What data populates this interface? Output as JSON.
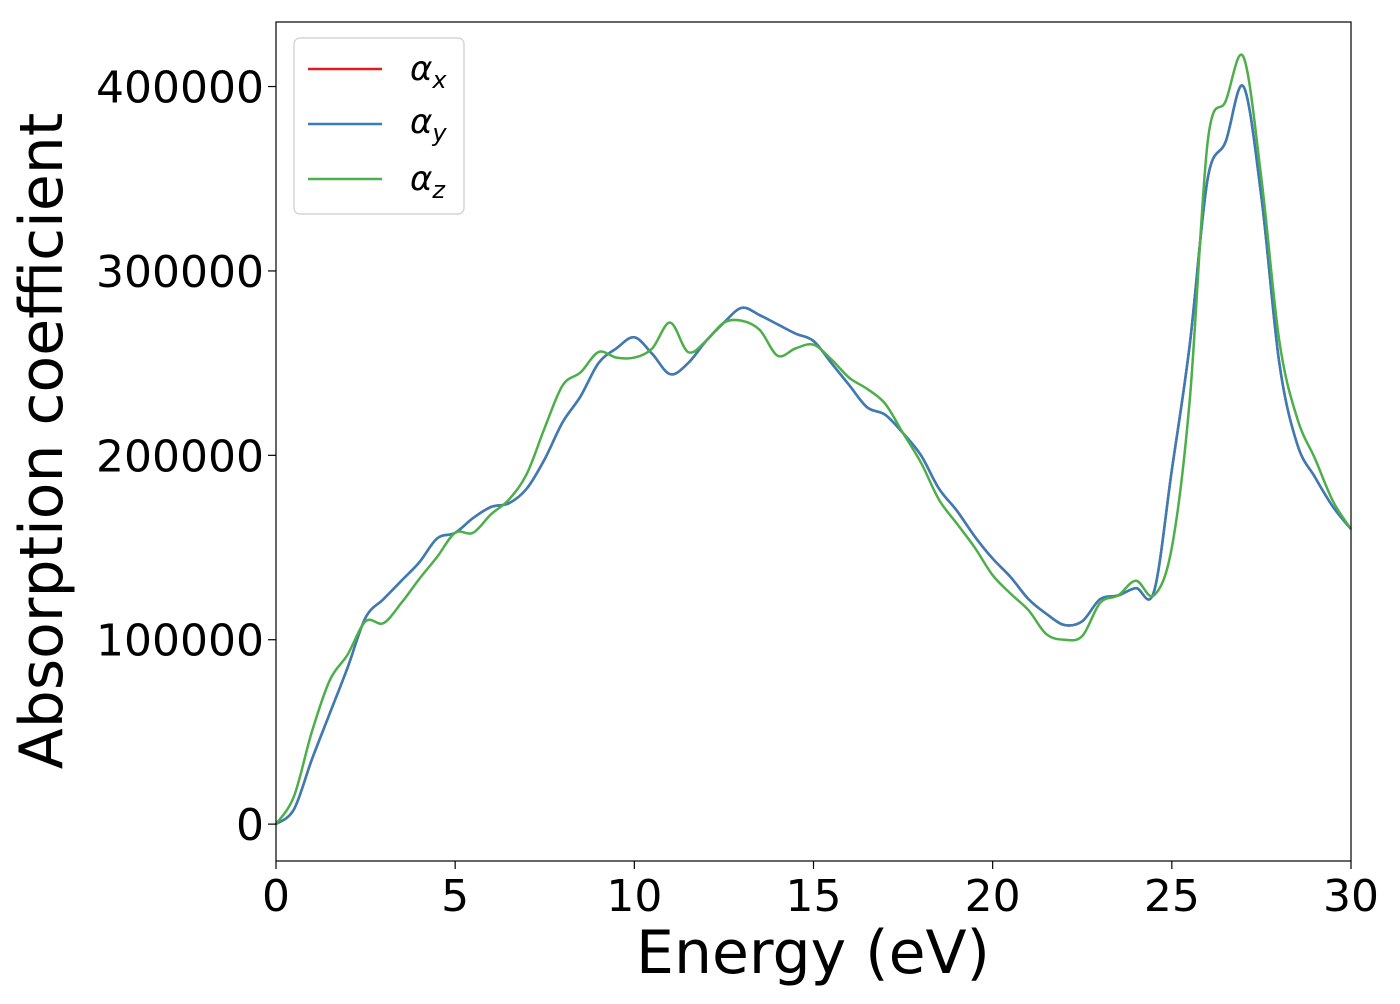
{
  "chart_data": {
    "type": "line",
    "title": "",
    "xlabel": "Energy (eV)",
    "ylabel": "Absorption coefficient",
    "xlim": [
      0,
      30
    ],
    "ylim": [
      -20000,
      435000
    ],
    "xticks": [
      0,
      5,
      10,
      15,
      20,
      25,
      30
    ],
    "xtick_labels": [
      "0",
      "5",
      "10",
      "15",
      "20",
      "25",
      "30"
    ],
    "yticks": [
      0,
      100000,
      200000,
      300000,
      400000
    ],
    "ytick_labels": [
      "0",
      "100000",
      "200000",
      "300000",
      "400000"
    ],
    "grid": false,
    "legend": {
      "position": "top-left",
      "entries": [
        {
          "symbol": "α",
          "subscript": "x"
        },
        {
          "symbol": "α",
          "subscript": "y"
        },
        {
          "symbol": "α",
          "subscript": "z"
        }
      ]
    },
    "series": [
      {
        "name": "αx",
        "color": "#e41a1c",
        "x": [
          0,
          0.5,
          1,
          1.5,
          2,
          2.5,
          3,
          3.5,
          4,
          4.5,
          5,
          5.5,
          6,
          6.5,
          7,
          7.5,
          8,
          8.5,
          9,
          9.5,
          10,
          10.5,
          11,
          11.5,
          12,
          12.5,
          13,
          13.5,
          14,
          14.5,
          15,
          15.5,
          16,
          16.5,
          17,
          17.5,
          18,
          18.5,
          19,
          19.5,
          20,
          20.5,
          21,
          21.5,
          22,
          22.5,
          23,
          23.5,
          24,
          24.5,
          25,
          25.5,
          26,
          26.5,
          27,
          27.5,
          28,
          28.5,
          29,
          29.5,
          30
        ],
        "y": [
          0,
          8000,
          35000,
          60000,
          85000,
          112000,
          122000,
          132000,
          142000,
          155000,
          158000,
          166000,
          172000,
          174000,
          182000,
          198000,
          218000,
          232000,
          250000,
          258000,
          264000,
          255000,
          244000,
          250000,
          262000,
          272000,
          280000,
          276000,
          271000,
          266000,
          262000,
          250000,
          238000,
          226000,
          222000,
          212000,
          200000,
          182000,
          170000,
          156000,
          144000,
          134000,
          122000,
          114000,
          108000,
          110000,
          122000,
          124000,
          128000,
          126000,
          192000,
          260000,
          350000,
          370000,
          400000,
          340000,
          250000,
          206000,
          188000,
          172000,
          160000
        ]
      },
      {
        "name": "αy",
        "color": "#377eb8",
        "x": [
          0,
          0.5,
          1,
          1.5,
          2,
          2.5,
          3,
          3.5,
          4,
          4.5,
          5,
          5.5,
          6,
          6.5,
          7,
          7.5,
          8,
          8.5,
          9,
          9.5,
          10,
          10.5,
          11,
          11.5,
          12,
          12.5,
          13,
          13.5,
          14,
          14.5,
          15,
          15.5,
          16,
          16.5,
          17,
          17.5,
          18,
          18.5,
          19,
          19.5,
          20,
          20.5,
          21,
          21.5,
          22,
          22.5,
          23,
          23.5,
          24,
          24.5,
          25,
          25.5,
          26,
          26.5,
          27,
          27.5,
          28,
          28.5,
          29,
          29.5,
          30
        ],
        "y": [
          0,
          8000,
          35000,
          60000,
          85000,
          112000,
          122000,
          132000,
          142000,
          155000,
          158000,
          166000,
          172000,
          174000,
          182000,
          198000,
          218000,
          232000,
          250000,
          258000,
          264000,
          255000,
          244000,
          250000,
          262000,
          272000,
          280000,
          276000,
          271000,
          266000,
          262000,
          250000,
          238000,
          226000,
          222000,
          212000,
          200000,
          182000,
          170000,
          156000,
          144000,
          134000,
          122000,
          114000,
          108000,
          110000,
          122000,
          124000,
          128000,
          126000,
          192000,
          260000,
          350000,
          370000,
          400000,
          340000,
          250000,
          206000,
          188000,
          172000,
          160000
        ]
      },
      {
        "name": "αz",
        "color": "#4daf4a",
        "x": [
          0,
          0.5,
          1,
          1.5,
          2,
          2.5,
          3,
          3.5,
          4,
          4.5,
          5,
          5.5,
          6,
          6.5,
          7,
          7.5,
          8,
          8.5,
          9,
          9.5,
          10,
          10.5,
          11,
          11.5,
          12,
          12.5,
          13,
          13.5,
          14,
          14.5,
          15,
          15.5,
          16,
          16.5,
          17,
          17.5,
          18,
          18.5,
          19,
          19.5,
          20,
          20.5,
          21,
          21.5,
          22,
          22.5,
          23,
          23.5,
          24,
          24.5,
          25,
          25.5,
          26,
          26.5,
          27,
          27.5,
          28,
          28.5,
          29,
          29.5,
          30
        ],
        "y": [
          0,
          15000,
          50000,
          78000,
          92000,
          110000,
          109000,
          120000,
          133000,
          145000,
          158000,
          158000,
          168000,
          176000,
          190000,
          215000,
          238000,
          245000,
          256000,
          253000,
          253000,
          258000,
          272000,
          256000,
          262000,
          272000,
          273000,
          268000,
          254000,
          258000,
          260000,
          252000,
          242000,
          236000,
          228000,
          212000,
          196000,
          176000,
          163000,
          150000,
          135000,
          125000,
          116000,
          103000,
          100000,
          102000,
          120000,
          124000,
          132000,
          124000,
          150000,
          230000,
          370000,
          392000,
          416000,
          350000,
          262000,
          220000,
          198000,
          175000,
          160000
        ]
      }
    ]
  }
}
